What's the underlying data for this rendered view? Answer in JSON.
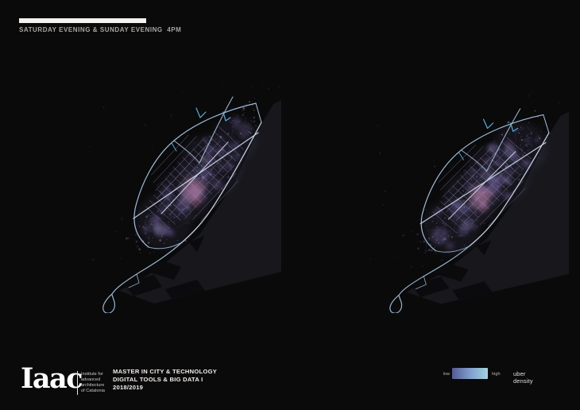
{
  "header": {
    "title": "SATURDAY EVENING & SUNDAY EVENING  4PM"
  },
  "footer": {
    "logo": "Iaac",
    "institute_lines": [
      "Institute for",
      "advanced",
      "architecture",
      "of Catalonia"
    ],
    "program_lines": [
      "MASTER IN CITY & TECHNOLOGY",
      "DIGITAL TOOLS & BIG DATA I",
      "2018/2019"
    ]
  },
  "legend": {
    "low_label": "low",
    "high_label": "high",
    "title": "uber density",
    "gradient": [
      "#545a90",
      "#7f9ecb",
      "#a2d4e0"
    ]
  },
  "map_colors": {
    "background": "#0a0a0b",
    "sea": "#17171c",
    "port": "#0b0b0d",
    "dot_colors": [
      "#8a7ab2",
      "#a396ce",
      "#7a6a9e",
      "#b4a8d8"
    ],
    "blob": "#7a68aa",
    "blob_light": "#9a8cc6",
    "pink": "#e898c6",
    "grid": "#9a90c8",
    "grid_major": "#c9d4ea",
    "route": "#a9c6e4",
    "route_bright": "#cbd8ec",
    "route_cyan": "#5fb7e6",
    "web": "#6f639a"
  }
}
